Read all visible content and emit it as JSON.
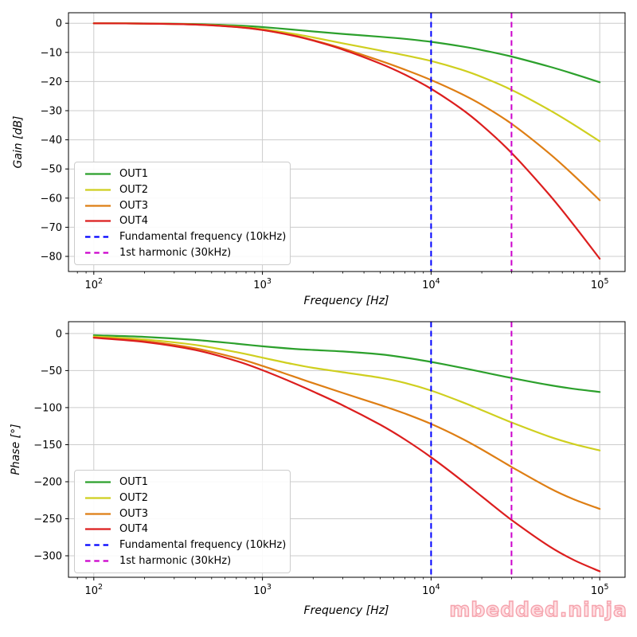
{
  "watermark": {
    "text": "mbedded.ninja",
    "color": "#f5a2ac"
  },
  "colors": {
    "out1": "#2ca02c",
    "out2": "#cfcf1f",
    "out3": "#de7e14",
    "out4": "#dc1e1e",
    "fundamental": "#0000ff",
    "harmonic": "#cc00cc",
    "grid": "#cccccc",
    "spine": "#000000"
  },
  "chart_data": [
    {
      "type": "line",
      "title": "",
      "xlabel": "Frequency [Hz]",
      "ylabel": "Gain [dB]",
      "x_scale": "log",
      "grid": true,
      "legend_position": "lower left",
      "xlim": [
        70.8,
        141300
      ],
      "ylim": [
        -85.2,
        3.6
      ],
      "xticks": [
        100,
        1000,
        10000,
        100000
      ],
      "yticks": [
        0,
        -10,
        -20,
        -30,
        -40,
        -50,
        -60,
        -70,
        -80
      ],
      "x": [
        100,
        200,
        400,
        700,
        1000,
        1500,
        2000,
        3000,
        5000,
        7000,
        10000,
        15000,
        20000,
        30000,
        50000,
        70000,
        100000
      ],
      "series": [
        {
          "name": "OUT1",
          "color": "#2ca02c",
          "values": [
            -0.02,
            -0.08,
            -0.29,
            -0.77,
            -1.32,
            -2.16,
            -2.82,
            -3.67,
            -4.64,
            -5.37,
            -6.38,
            -7.89,
            -9.21,
            -11.44,
            -14.84,
            -17.38,
            -20.25
          ]
        },
        {
          "name": "OUT2",
          "color": "#cfcf1f",
          "values": [
            -0.03,
            -0.11,
            -0.41,
            -1.14,
            -2.03,
            -3.55,
            -4.88,
            -6.9,
            -9.35,
            -10.98,
            -12.96,
            -15.86,
            -18.45,
            -22.87,
            -29.68,
            -34.76,
            -40.49
          ]
        },
        {
          "name": "OUT3",
          "color": "#de7e14",
          "values": [
            -0.03,
            -0.12,
            -0.45,
            -1.27,
            -2.29,
            -4.09,
            -5.79,
            -8.67,
            -12.88,
            -15.94,
            -19.49,
            -24.13,
            -27.99,
            -34.49,
            -44.57,
            -52.16,
            -60.74
          ]
        },
        {
          "name": "OUT4",
          "color": "#dc1e1e",
          "values": [
            -0.03,
            -0.12,
            -0.46,
            -1.29,
            -2.33,
            -4.18,
            -5.96,
            -9.04,
            -13.85,
            -17.67,
            -22.5,
            -29.25,
            -34.98,
            -44.49,
            -58.71,
            -69.15,
            -80.79
          ]
        }
      ],
      "vlines": [
        {
          "name": "Fundamental frequency (10kHz)",
          "x": 10000,
          "color": "#0000ff",
          "linestyle": "dashed"
        },
        {
          "name": "1st harmonic (30kHz)",
          "x": 30000,
          "color": "#cc00cc",
          "linestyle": "dashed"
        }
      ]
    },
    {
      "type": "line",
      "title": "",
      "xlabel": "Frequency [Hz]",
      "ylabel": "Phase [°]",
      "x_scale": "log",
      "grid": true,
      "legend_position": "lower left",
      "xlim": [
        70.8,
        141300
      ],
      "ylim": [
        -329,
        16
      ],
      "xticks": [
        100,
        1000,
        10000,
        100000
      ],
      "yticks": [
        0,
        -50,
        -100,
        -150,
        -200,
        -250,
        -300
      ],
      "x": [
        100,
        200,
        400,
        700,
        1000,
        1500,
        2000,
        3000,
        5000,
        7000,
        10000,
        15000,
        20000,
        30000,
        50000,
        70000,
        100000
      ],
      "series": [
        {
          "name": "OUT1",
          "color": "#2ca02c",
          "values": [
            -2.28,
            -4.52,
            -8.66,
            -13.69,
            -17.21,
            -20.52,
            -22.19,
            -24.17,
            -28.11,
            -32.42,
            -38.32,
            -46.04,
            -51.83,
            -60.01,
            -69.47,
            -74.59,
            -78.89
          ]
        },
        {
          "name": "OUT2",
          "color": "#cfcf1f",
          "values": [
            -4.0,
            -7.95,
            -15.41,
            -25.05,
            -32.58,
            -41.09,
            -46.31,
            -52.26,
            -59.65,
            -66.68,
            -76.98,
            -91.78,
            -103.37,
            -119.94,
            -138.93,
            -149.19,
            -157.79
          ]
        },
        {
          "name": "OUT3",
          "color": "#de7e14",
          "values": [
            -5.14,
            -10.23,
            -19.97,
            -32.97,
            -43.73,
            -57.28,
            -67.01,
            -80.24,
            -96.51,
            -108.04,
            -121.98,
            -140.99,
            -156.51,
            -180.0,
            -208.23,
            -223.69,
            -236.64
          ]
        },
        {
          "name": "OUT4",
          "color": "#dc1e1e",
          "values": [
            -5.72,
            -11.38,
            -22.26,
            -36.97,
            -49.44,
            -65.81,
            -78.32,
            -96.94,
            -123.08,
            -143.03,
            -166.98,
            -197.3,
            -219.94,
            -251.57,
            -286.92,
            -305.56,
            -320.93
          ]
        }
      ],
      "vlines": [
        {
          "name": "Fundamental frequency (10kHz)",
          "x": 10000,
          "color": "#0000ff",
          "linestyle": "dashed"
        },
        {
          "name": "1st harmonic (30kHz)",
          "x": 30000,
          "color": "#cc00cc",
          "linestyle": "dashed"
        }
      ]
    }
  ]
}
